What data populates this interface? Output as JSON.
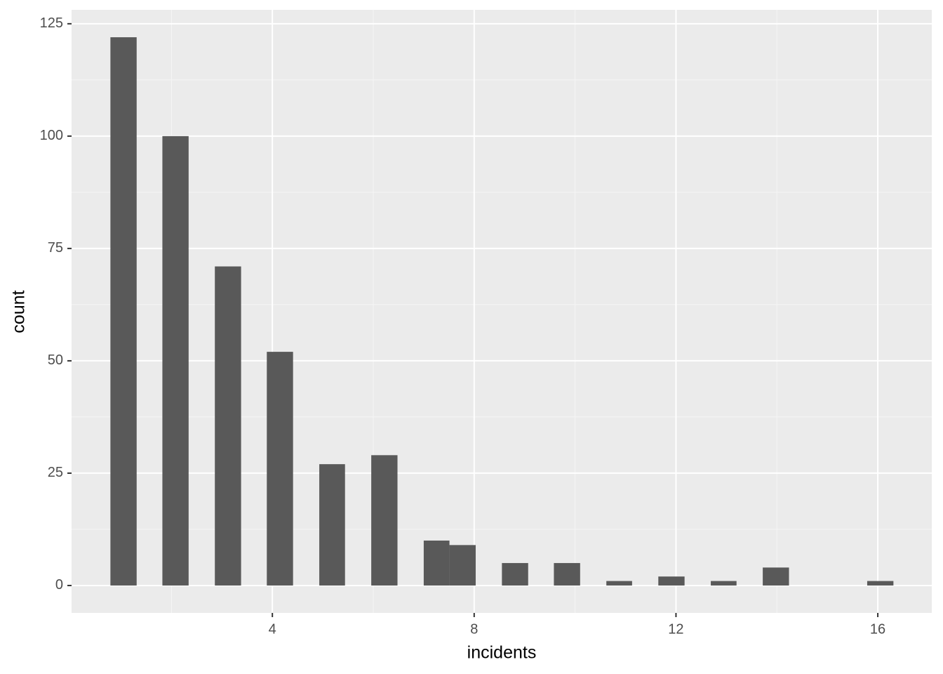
{
  "chart_data": {
    "type": "histogram",
    "x_label": "incidents",
    "y_label": "count",
    "bins": [
      0.79,
      1.31,
      1.82,
      2.34,
      2.86,
      3.38,
      3.89,
      4.41,
      4.93,
      5.44,
      5.96,
      6.48,
      7.0,
      7.51,
      8.03,
      8.55,
      9.07,
      9.58,
      10.1,
      10.62,
      11.13,
      11.65,
      12.17,
      12.69,
      13.2,
      13.72,
      14.24,
      14.75,
      15.27,
      15.79,
      16.31
    ],
    "values": [
      122,
      0,
      100,
      0,
      71,
      0,
      52,
      0,
      27,
      0,
      29,
      0,
      10,
      9,
      0,
      5,
      0,
      5,
      0,
      1,
      0,
      2,
      0,
      1,
      0,
      4,
      0,
      0,
      0,
      1
    ],
    "color": "#595959",
    "xlim": [
      0.02,
      17.07
    ],
    "xticks": [
      4,
      8,
      12,
      16
    ],
    "ylim": [
      -6.1,
      128.1
    ],
    "yticks": [
      0,
      25,
      50,
      75,
      100,
      125
    ],
    "grid": true
  }
}
